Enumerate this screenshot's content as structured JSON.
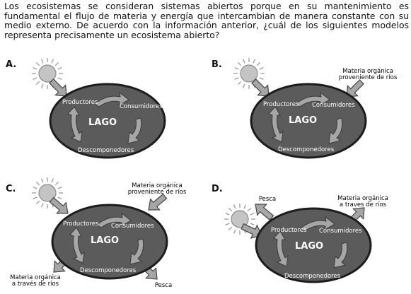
{
  "question": "Los ecosistemas se consideran sistemas abiertos porque en su mantenimiento es fundamental el flujo de materia y energía que intercambian de manera constante con su medio externo. De acuerdo con la información anterior, ¿cuál de los siguientes modelos representa precisamente un ecosistema abierto?",
  "colors": {
    "lake": "#5b5b5b",
    "lake_stroke": "#1c1c1c",
    "arrow": "#a6a6a6",
    "arrow_stroke": "#444444",
    "sun": "#c4c4c4"
  },
  "inner_labels": {
    "producers": "Productores",
    "consumers": "Consumidores",
    "lake": "LAGO",
    "decomposers": "Descomponedores"
  },
  "options": {
    "A": {
      "letter": "A."
    },
    "B": {
      "letter": "B.",
      "input_label": [
        "Materia orgánica",
        "proveniente de ríos"
      ]
    },
    "C": {
      "letter": "C.",
      "input_label": [
        "Materia orgánica",
        "proveniente de ríos"
      ],
      "output_label_1": [
        "Materia orgánica",
        "a través de ríos"
      ],
      "output_label_2": "Pesca"
    },
    "D": {
      "letter": "D.",
      "output_label_1": "Pesca",
      "output_label_2": [
        "Materia orgánica",
        "a traves de ríos"
      ]
    }
  }
}
